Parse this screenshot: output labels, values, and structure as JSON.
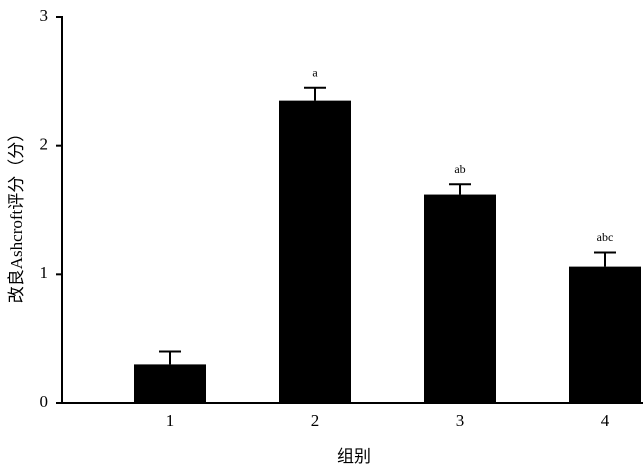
{
  "chart_data": {
    "type": "bar",
    "xlabel": "组别",
    "ylabel": "改良Ashcroft评分（分）",
    "categories": [
      "1",
      "2",
      "3",
      "4"
    ],
    "values": [
      0.3,
      2.35,
      1.62,
      1.06
    ],
    "errors": [
      0.1,
      0.1,
      0.08,
      0.11
    ],
    "annotations": [
      null,
      "a",
      "ab",
      "abc"
    ],
    "color": "#000000",
    "ylim": [
      0,
      3
    ],
    "yticks": [
      0,
      1,
      2,
      3
    ],
    "grid": false
  }
}
